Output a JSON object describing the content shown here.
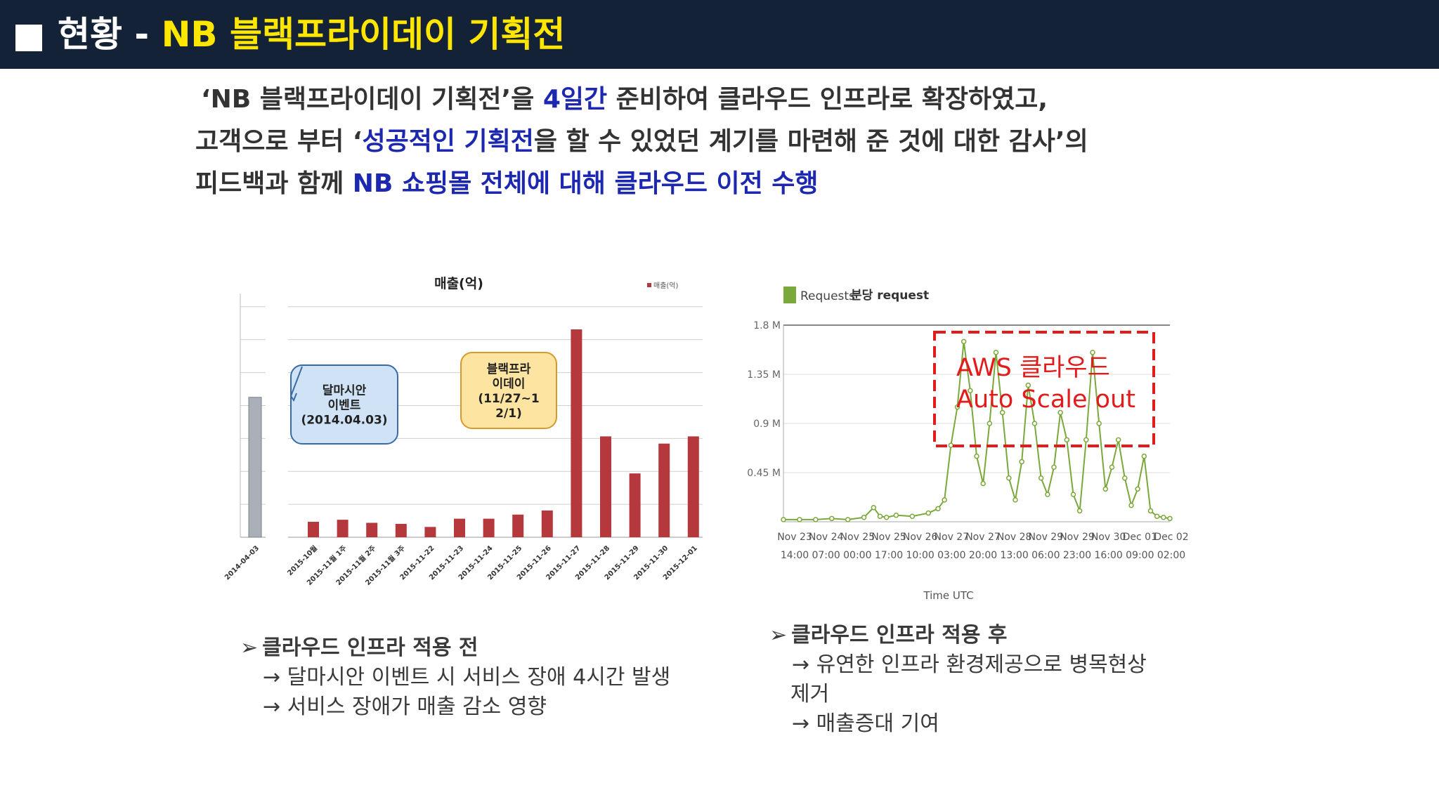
{
  "header": {
    "prefix": "현황 - ",
    "title": "NB 블랙프라이데이 기획전"
  },
  "summary": {
    "line1": [
      {
        "text": "‘NB 블랙프라이데이 기획전’을 ",
        "hl": false
      },
      {
        "text": "4일간",
        "hl": true
      },
      {
        "text": " 준비하여 클라우드 인프라로 확장하였고,",
        "hl": false
      }
    ],
    "line2": [
      {
        "text": "고객으로 부터 ‘",
        "hl": false
      },
      {
        "text": "성공적인 기획전",
        "hl": true
      },
      {
        "text": "을 할 수 있었던 계기를 마련해 준 것에 대한 감사’의",
        "hl": false
      }
    ],
    "line3": [
      {
        "text": "피드백과 함께 ",
        "hl": false
      },
      {
        "text": "NB 쇼핑몰 전체에 대해 클라우드 이전 수행",
        "hl": true
      }
    ]
  },
  "colors": {
    "header_bg": "#142238",
    "header_accent": "#ffe600",
    "highlight_text": "#1d28b0",
    "bar_red": "#b5383d",
    "bar_gray": "#a9b0b8",
    "line_green": "#7aa83a",
    "annotation_red": "#e31b1b"
  },
  "chart_data": [
    {
      "type": "bar",
      "title": "매출(억)",
      "legend": "매출(억)",
      "legend_position": "top-right",
      "grid": true,
      "ylim": [
        0,
        11.5
      ],
      "categories": [
        "2014-04-03",
        "2015-10월",
        "2015-11월 1주",
        "2015-11월 2주",
        "2015-11월 3주",
        "2015-11-22",
        "2015-11-23",
        "2015-11-24",
        "2015-11-25",
        "2015-11-26",
        "2015-11-27",
        "2015-11-28",
        "2015-11-29",
        "2015-11-30",
        "2015-12-01"
      ],
      "values": [
        6.8,
        0.75,
        0.85,
        0.7,
        0.65,
        0.5,
        0.9,
        0.9,
        1.1,
        1.3,
        10.1,
        4.9,
        3.1,
        4.55,
        4.9
      ],
      "callouts": [
        {
          "lines": [
            "달마시안",
            "이벤트",
            "(2014.04.03)"
          ]
        },
        {
          "lines": [
            "블랙프라",
            "이데이",
            "(11/27~1",
            "2/1)"
          ]
        }
      ]
    },
    {
      "type": "line",
      "title": "분당 request",
      "legend": "Requests",
      "legend_position": "top-left",
      "xlabel": "Time UTC",
      "grid": true,
      "ylim": [
        0,
        1.8
      ],
      "y_unit": "M",
      "y_ticks": [
        "1.8 M",
        "1.35 M",
        "0.9 M",
        "0.45 M"
      ],
      "x_ticks": [
        {
          "l1": "Nov 23",
          "l2": "14:00"
        },
        {
          "l1": "Nov 24",
          "l2": "07:00"
        },
        {
          "l1": "Nov 25",
          "l2": "00:00"
        },
        {
          "l1": "Nov 25",
          "l2": "17:00"
        },
        {
          "l1": "Nov 26",
          "l2": "10:00"
        },
        {
          "l1": "Nov 27",
          "l2": "03:00"
        },
        {
          "l1": "Nov 27",
          "l2": "20:00"
        },
        {
          "l1": "Nov 28",
          "l2": "13:00"
        },
        {
          "l1": "Nov 29",
          "l2": "06:00"
        },
        {
          "l1": "Nov 29",
          "l2": "23:00"
        },
        {
          "l1": "Nov 30",
          "l2": "16:00"
        },
        {
          "l1": "Dec 01",
          "l2": "09:00"
        },
        {
          "l1": "Dec 02",
          "l2": "02:00"
        }
      ],
      "x": [
        0,
        0.5,
        1,
        1.5,
        2,
        2.5,
        2.8,
        3,
        3.2,
        3.5,
        4,
        4.5,
        4.8,
        5,
        5.2,
        5.4,
        5.6,
        5.8,
        6,
        6.2,
        6.4,
        6.6,
        6.8,
        7,
        7.2,
        7.4,
        7.6,
        7.8,
        8,
        8.2,
        8.4,
        8.6,
        8.8,
        9,
        9.2,
        9.4,
        9.6,
        9.8,
        10,
        10.2,
        10.4,
        10.6,
        10.8,
        11,
        11.2,
        11.4,
        11.6,
        11.8,
        12
      ],
      "y": [
        0.02,
        0.02,
        0.02,
        0.03,
        0.02,
        0.04,
        0.13,
        0.05,
        0.04,
        0.06,
        0.05,
        0.08,
        0.12,
        0.2,
        0.7,
        1.05,
        1.65,
        1.2,
        0.6,
        0.35,
        0.9,
        1.55,
        1.0,
        0.4,
        0.2,
        0.55,
        1.25,
        0.9,
        0.4,
        0.25,
        0.5,
        1.0,
        0.75,
        0.25,
        0.1,
        0.75,
        1.55,
        0.9,
        0.3,
        0.5,
        0.75,
        0.4,
        0.15,
        0.3,
        0.6,
        0.1,
        0.05,
        0.04,
        0.03
      ],
      "annotation": [
        "AWS 클라우드",
        "Auto Scale out"
      ]
    }
  ],
  "bullets_before": {
    "head": "클라우드 인프라 적용 전",
    "items": [
      "→ 달마시안 이벤트 시 서비스 장애 4시간 발생",
      "→ 서비스 장애가 매출 감소 영향"
    ]
  },
  "bullets_after": {
    "head": "클라우드 인프라 적용 후",
    "items": [
      "→ 유연한 인프라 환경제공으로 병목현상",
      "제거",
      "→ 매출증대 기여"
    ]
  },
  "bullet_glyph": "➢"
}
